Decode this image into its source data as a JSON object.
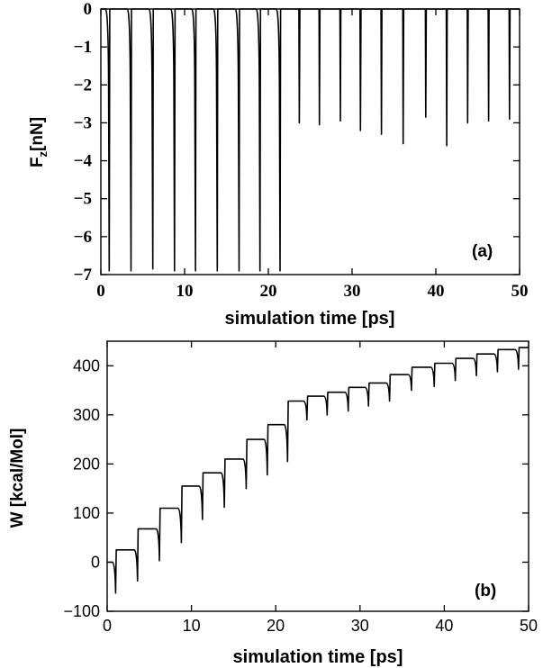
{
  "chart_data": [
    {
      "type": "line",
      "panel_label": "(a)",
      "xlabel": "simulation time [ps]",
      "ylabel": "F",
      "ylabel_sub": "z",
      "ylabel_unit": "[nN]",
      "xlim": [
        0,
        50
      ],
      "ylim": [
        -7,
        0
      ],
      "x_ticks": [
        0,
        10,
        20,
        30,
        40,
        50
      ],
      "y_ticks": [
        0,
        -1,
        -2,
        -3,
        -4,
        -5,
        -6,
        -7
      ],
      "y_tick_labels": [
        "0",
        "−1",
        "−2",
        "−3",
        "−4",
        "−5",
        "−6",
        "−7"
      ],
      "grid": false,
      "series": [
        {
          "description_of_shape": "periodic downward force spikes",
          "baseline": 0,
          "spike_times": [
            1.0,
            3.6,
            6.2,
            8.8,
            11.3,
            13.9,
            16.5,
            19.0,
            21.4,
            23.7,
            26.1,
            28.6,
            31.0,
            33.5,
            36.1,
            38.8,
            41.3,
            43.8,
            46.3,
            48.8
          ],
          "spike_minima": [
            -6.9,
            -6.9,
            -6.85,
            -6.9,
            -6.9,
            -6.9,
            -6.9,
            -6.9,
            -6.9,
            -3.0,
            -3.05,
            -2.95,
            -3.2,
            -3.3,
            -3.55,
            -2.85,
            -3.6,
            -3.0,
            -2.95,
            -2.9
          ]
        }
      ]
    },
    {
      "type": "line",
      "panel_label": "(b)",
      "xlabel": "simulation time [ps]",
      "ylabel": "W [kcal/Mol]",
      "xlim": [
        0,
        50
      ],
      "ylim": [
        -100,
        450
      ],
      "x_ticks": [
        0,
        10,
        20,
        30,
        40,
        50
      ],
      "y_ticks": [
        -100,
        0,
        100,
        200,
        300,
        400
      ],
      "y_tick_labels": [
        "−100",
        "0",
        "100",
        "200",
        "300",
        "400"
      ],
      "grid": false,
      "series": [
        {
          "description_of_shape": "staircase work curve with downward spikes",
          "step_times": [
            1.0,
            3.6,
            6.2,
            8.8,
            11.3,
            13.9,
            16.5,
            19.0,
            21.4,
            23.7,
            26.1,
            28.6,
            31.0,
            33.5,
            36.1,
            38.8,
            41.3,
            43.8,
            46.3,
            48.8
          ],
          "level_before": [
            0,
            25,
            68,
            110,
            155,
            182,
            210,
            250,
            280,
            328,
            338,
            346,
            356,
            365,
            382,
            397,
            405,
            415,
            424,
            433
          ],
          "spike_minima": [
            -63,
            -38,
            3,
            40,
            87,
            112,
            150,
            178,
            205,
            290,
            300,
            308,
            318,
            328,
            350,
            358,
            370,
            380,
            388,
            393
          ],
          "level_after": [
            25,
            68,
            110,
            155,
            182,
            210,
            250,
            280,
            328,
            338,
            346,
            356,
            365,
            382,
            397,
            405,
            415,
            424,
            433,
            437
          ]
        }
      ]
    }
  ]
}
